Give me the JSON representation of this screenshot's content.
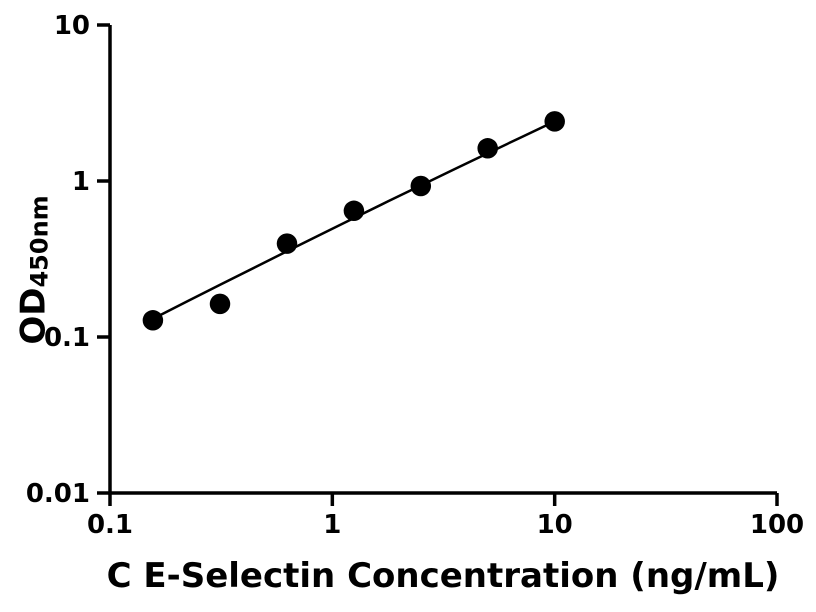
{
  "figure": {
    "background": "#ffffff",
    "foreground": "#000000"
  },
  "chart_data": {
    "type": "scatter",
    "title": "",
    "xlabel": "C E-Selectin Concentration (ng/mL)",
    "ylabel_main": "OD",
    "ylabel_sub": "450nm",
    "x_scale": "log",
    "y_scale": "log",
    "xlim": [
      0.1,
      100
    ],
    "ylim": [
      0.01,
      10
    ],
    "x_ticks": [
      "0.1",
      "1",
      "10",
      "100"
    ],
    "y_ticks": [
      "10",
      "1",
      "0.1",
      "0.01"
    ],
    "grid": false,
    "legend": "none",
    "series": [
      {
        "name": "standard-points",
        "type": "scatter",
        "marker": "filled-circle",
        "color": "#000000",
        "points": [
          {
            "x": 0.156,
            "y": 0.128
          },
          {
            "x": 0.3125,
            "y": 0.163
          },
          {
            "x": 0.625,
            "y": 0.397
          },
          {
            "x": 1.25,
            "y": 0.644
          },
          {
            "x": 2.5,
            "y": 0.929
          },
          {
            "x": 5,
            "y": 1.62
          },
          {
            "x": 10,
            "y": 2.41
          }
        ]
      },
      {
        "name": "fit-line",
        "type": "line",
        "color": "#000000",
        "points": [
          {
            "x": 0.153,
            "y": 0.129
          },
          {
            "x": 0.224,
            "y": 0.17
          },
          {
            "x": 0.316,
            "y": 0.218
          },
          {
            "x": 0.447,
            "y": 0.279
          },
          {
            "x": 0.631,
            "y": 0.357
          },
          {
            "x": 0.891,
            "y": 0.456
          },
          {
            "x": 1.259,
            "y": 0.581
          },
          {
            "x": 1.778,
            "y": 0.74
          },
          {
            "x": 2.512,
            "y": 0.94
          },
          {
            "x": 3.548,
            "y": 1.192
          },
          {
            "x": 5.012,
            "y": 1.51
          },
          {
            "x": 7.079,
            "y": 1.909
          },
          {
            "x": 10.0,
            "y": 2.41
          }
        ]
      }
    ]
  }
}
